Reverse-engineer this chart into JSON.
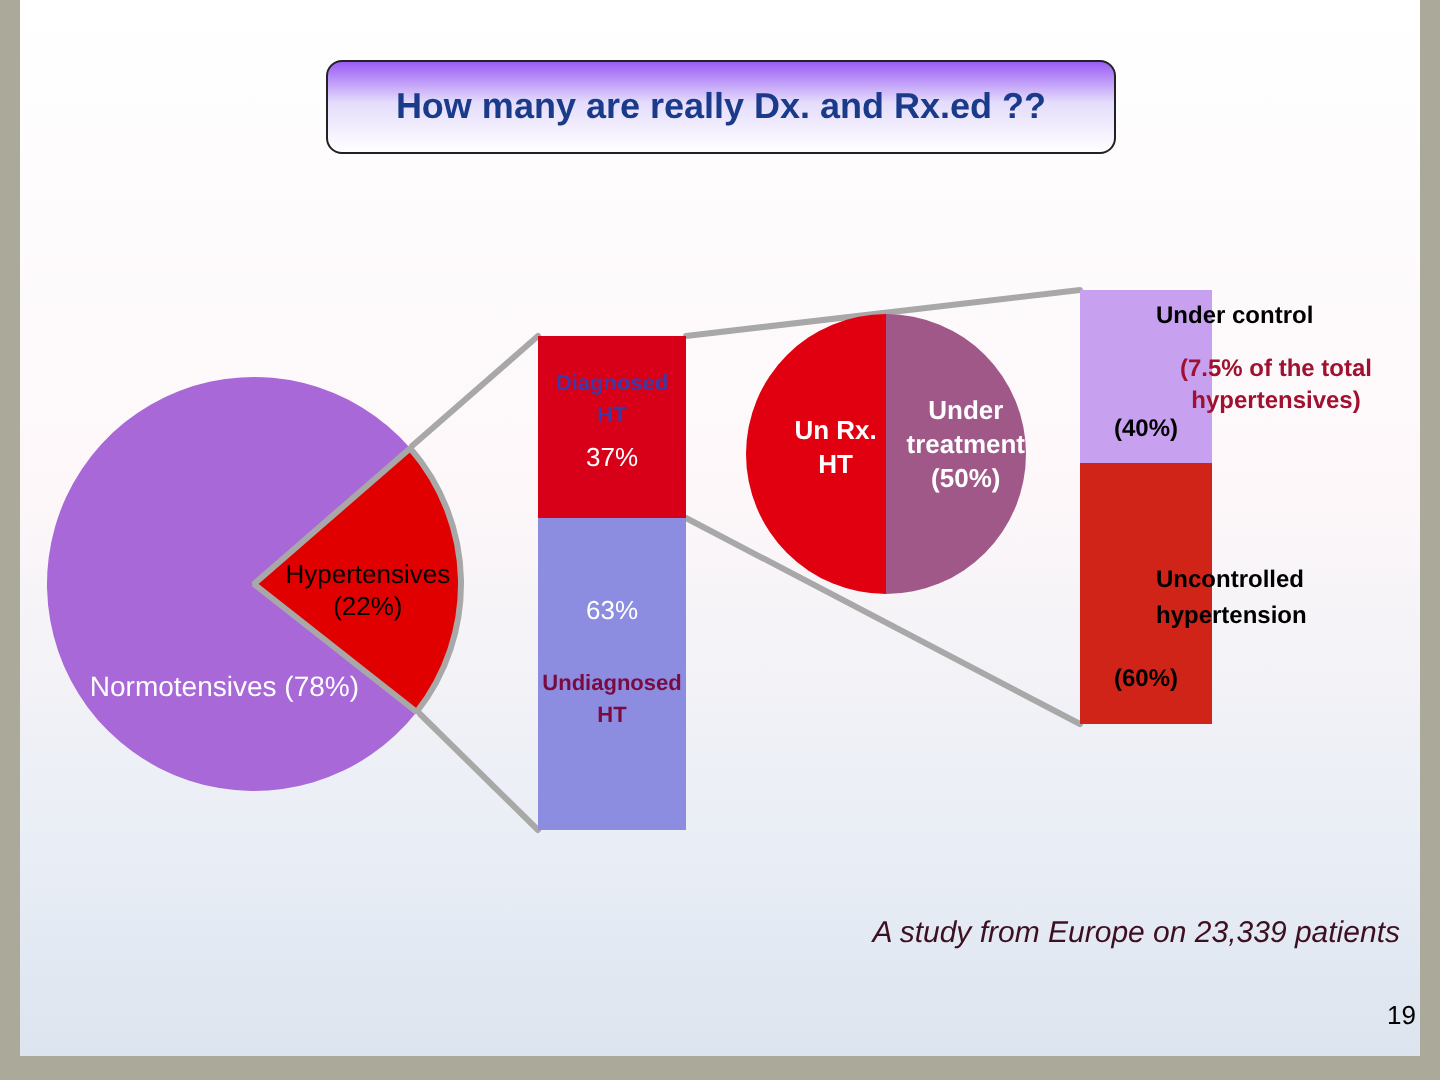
{
  "chart_data": [
    {
      "type": "pie",
      "title": "How many are really Dx. and Rx.ed ??",
      "categories": [
        "Normotensives (78%)",
        "Hypertensives (22%)"
      ],
      "values": [
        78,
        22
      ],
      "colors": [
        "#a868d8",
        "#e00000"
      ],
      "annotations": [
        "A study from Europe on 23,339 patients",
        "19"
      ]
    },
    {
      "type": "bar",
      "stacked": true,
      "categories": [
        null
      ],
      "series": [
        {
          "name": "Undiagnosed HT",
          "color": "#8c8ce0",
          "values": [
            63
          ],
          "value_labels": [
            "63%"
          ]
        },
        {
          "name": "Diagnosed HT",
          "color": "#d80018",
          "values": [
            37
          ],
          "value_labels": [
            "37%"
          ]
        }
      ],
      "tick_labels": false
    },
    {
      "type": "pie",
      "categories": [
        "Un Rx. HT",
        "Under treatment (50%)"
      ],
      "values": [
        50,
        50
      ],
      "colors": [
        "#e00010",
        "#a05888"
      ]
    },
    {
      "type": "bar",
      "stacked": true,
      "categories": [
        null
      ],
      "series": [
        {
          "name": "Uncontrolled hypertension",
          "color": "#d02418",
          "values": [
            60
          ],
          "value_labels": [
            "(60%)"
          ]
        },
        {
          "name": "Under control",
          "color": "#c8a0f0",
          "values": [
            40
          ],
          "value_labels": [
            "(40%)"
          ]
        }
      ],
      "annotations": [
        "(7.5% of the total hypertensives)"
      ],
      "tick_labels": false
    }
  ]
}
